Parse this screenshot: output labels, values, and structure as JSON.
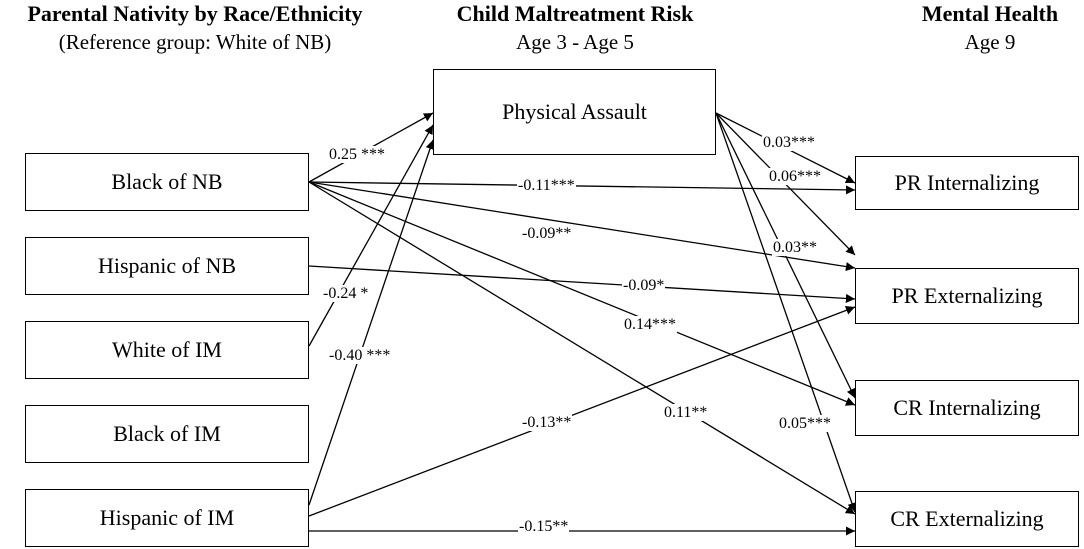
{
  "headers": {
    "left": {
      "title": "Parental Nativity by Race/Ethnicity",
      "subtitle": "(Reference group: White of NB)"
    },
    "middle": {
      "title": "Child Maltreatment Risk",
      "subtitle": "Age 3 - Age 5"
    },
    "right": {
      "title": "Mental Health",
      "subtitle": "Age 9"
    }
  },
  "nodes": {
    "physical_assault": "Physical Assault",
    "black_nb": "Black of NB",
    "hispanic_nb": "Hispanic of NB",
    "white_im": "White of IM",
    "black_im": "Black of IM",
    "hispanic_im": "Hispanic of IM",
    "pr_internalizing": "PR Internalizing",
    "pr_externalizing": "PR Externalizing",
    "cr_internalizing": "CR Internalizing",
    "cr_externalizing": "CR Externalizing"
  },
  "paths": [
    {
      "from": "black_nb",
      "to": "physical_assault",
      "label": "0.25 ***"
    },
    {
      "from": "white_im",
      "to": "physical_assault",
      "label": "-0.24 *"
    },
    {
      "from": "hispanic_im",
      "to": "physical_assault",
      "label": "-0.40 ***"
    },
    {
      "from": "black_nb",
      "to": "pr_internalizing",
      "label": "-0.11***"
    },
    {
      "from": "black_nb",
      "to": "pr_externalizing",
      "label": "-0.09**"
    },
    {
      "from": "black_nb",
      "to": "cr_internalizing",
      "label": "0.14***"
    },
    {
      "from": "black_nb",
      "to": "cr_externalizing",
      "label": "0.11**"
    },
    {
      "from": "hispanic_nb",
      "to": "pr_externalizing",
      "label": "-0.09*"
    },
    {
      "from": "hispanic_im",
      "to": "pr_externalizing",
      "label": "-0.13**"
    },
    {
      "from": "hispanic_im",
      "to": "cr_externalizing",
      "label": "-0.15**"
    },
    {
      "from": "physical_assault",
      "to": "pr_internalizing",
      "label": "0.03***"
    },
    {
      "from": "physical_assault",
      "to": "pr_externalizing",
      "label": "0.06***"
    },
    {
      "from": "physical_assault",
      "to": "cr_internalizing",
      "label": "0.03**"
    },
    {
      "from": "physical_assault",
      "to": "cr_externalizing",
      "label": "0.05***"
    }
  ]
}
